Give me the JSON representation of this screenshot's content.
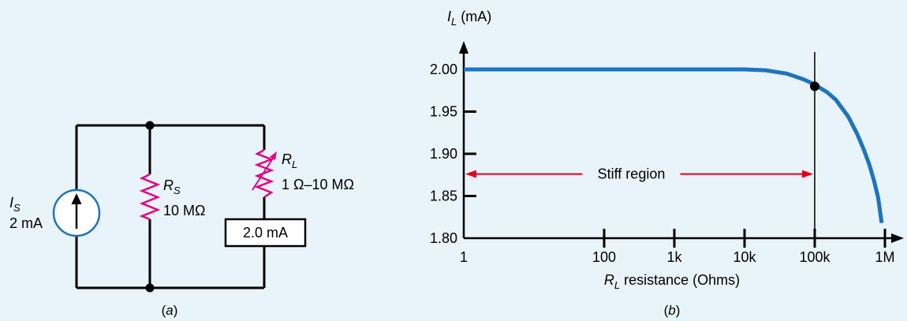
{
  "circuit": {
    "source_label": "I",
    "source_sub": "S",
    "source_value": "2 mA",
    "rs_label": "R",
    "rs_sub": "S",
    "rs_value": "10 MΩ",
    "rl_label": "R",
    "rl_sub": "L",
    "rl_value": "1 Ω–10 MΩ",
    "meter_value": "2.0 mA",
    "caption_open": "(",
    "caption_letter": "a",
    "caption_close": ")"
  },
  "graph": {
    "caption_open": "(",
    "caption_letter": "b",
    "caption_close": ")",
    "region_label": "Stiff region"
  },
  "colors": {
    "curve": "#1e73be",
    "resistor": "#e6007e",
    "region_arrow": "#e3001b",
    "source_ring": "#1e73be",
    "background": "#e8f3fa"
  },
  "chart_data": {
    "type": "line",
    "title": "",
    "ylabel": "I",
    "ylabel_sub": "L",
    "ylabel_unit": " (mA)",
    "xlabel": "R",
    "xlabel_sub": "L",
    "xlabel_rest": " resistance (Ohms)",
    "x_scale": "log",
    "xlim": [
      1,
      1000000
    ],
    "ylim": [
      1.8,
      2.0
    ],
    "x_ticks": [
      1,
      100,
      1000,
      10000,
      100000,
      1000000
    ],
    "x_tick_labels": [
      "1",
      "100",
      "1k",
      "10k",
      "100k",
      "1M"
    ],
    "y_ticks": [
      1.8,
      1.85,
      1.9,
      1.95,
      2.0
    ],
    "y_tick_labels": [
      "1.80",
      "1.85",
      "1.90",
      "1.95",
      "2.00"
    ],
    "marked_point": {
      "x": 100000,
      "y": 1.98
    },
    "x": [
      1,
      100,
      1000,
      10000,
      20000,
      40000,
      70000,
      100000,
      150000,
      200000,
      300000,
      400000,
      500000,
      600000,
      700000,
      800000,
      900000
    ],
    "y": [
      2.0,
      2.0,
      2.0,
      2.0,
      1.999,
      1.995,
      1.988,
      1.982,
      1.973,
      1.964,
      1.944,
      1.924,
      1.905,
      1.887,
      1.868,
      1.848,
      1.818
    ]
  }
}
